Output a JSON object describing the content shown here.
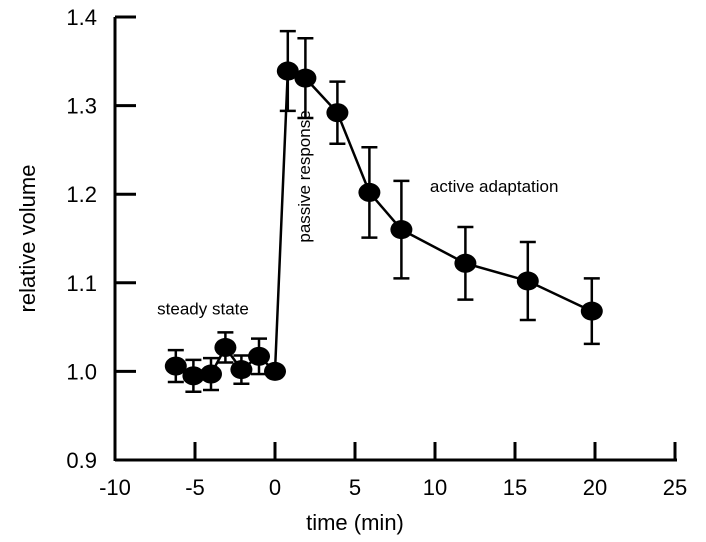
{
  "chart_data": {
    "type": "scatter",
    "xlabel": "time (min)",
    "ylabel": "relative volume",
    "xlim": [
      -10,
      25
    ],
    "ylim": [
      0.9,
      1.4
    ],
    "xticks": [
      -10,
      -5,
      0,
      5,
      10,
      15,
      20,
      25
    ],
    "yticks": [
      0.9,
      1.0,
      1.1,
      1.2,
      1.3,
      1.4
    ],
    "xtick_labels": [
      "-10",
      "-5",
      "0",
      "5",
      "10",
      "15",
      "20",
      "25"
    ],
    "ytick_labels": [
      "0.9",
      "1.0",
      "1.1",
      "1.2",
      "1.3",
      "1.4"
    ],
    "grid": false,
    "series": [
      {
        "x": [
          -6.2,
          -5.1,
          -4.0,
          -3.1,
          -2.1,
          -1.0,
          0.0,
          0.8,
          1.9,
          3.9,
          5.9,
          7.9,
          11.9,
          15.8,
          19.8
        ],
        "y": [
          1.006,
          0.995,
          0.997,
          1.027,
          1.002,
          1.017,
          1.0,
          1.339,
          1.331,
          1.292,
          1.202,
          1.16,
          1.122,
          1.102,
          1.068
        ],
        "err": [
          0.018,
          0.018,
          0.018,
          0.017,
          0.016,
          0.02,
          0.0,
          0.045,
          0.045,
          0.035,
          0.051,
          0.055,
          0.041,
          0.044,
          0.037
        ],
        "connected": true
      }
    ],
    "annotations": [
      {
        "text": "steady state",
        "x": -4.5,
        "y": 1.071
      },
      {
        "text": "passive response",
        "x": 1.8,
        "y": 1.22,
        "orientation": "vertical"
      },
      {
        "text": "active adaptation",
        "x": 13.7,
        "y": 1.209
      }
    ]
  }
}
